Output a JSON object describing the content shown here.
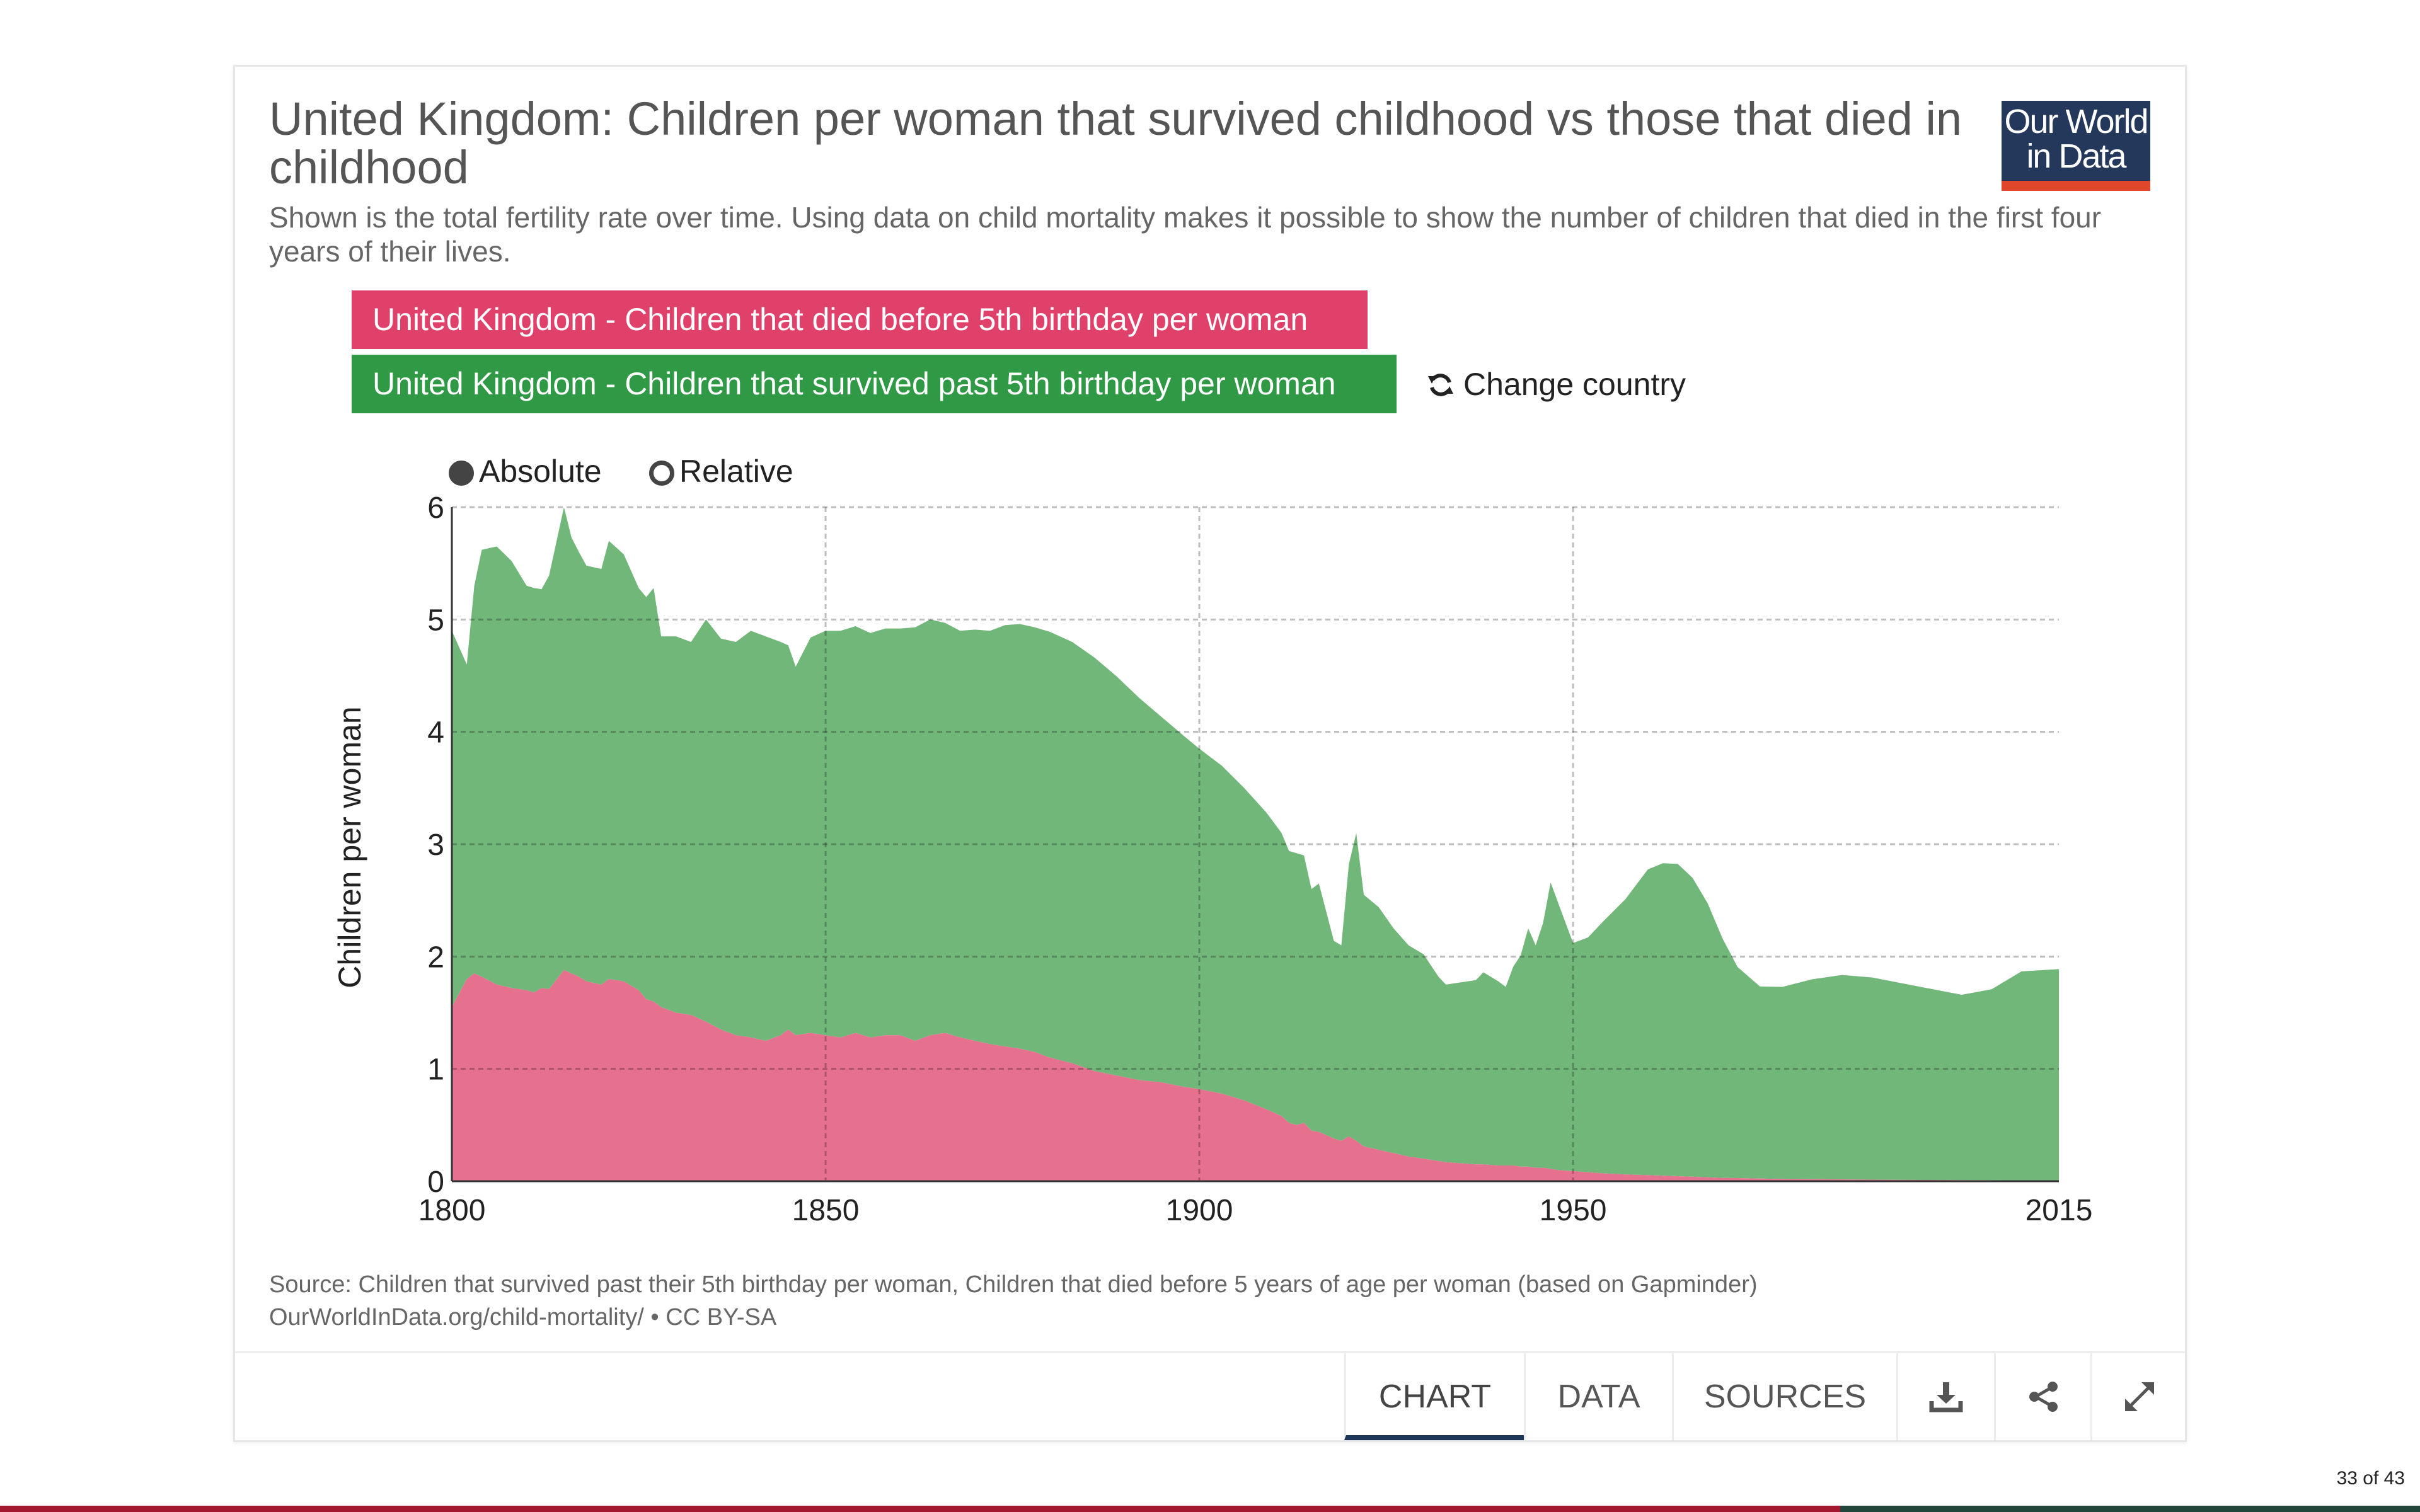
{
  "header": {
    "title": "United Kingdom: Children per woman that survived childhood vs those that died in childhood",
    "subtitle": "Shown is the total fertility rate over time. Using data on child mortality makes it possible to show the number of children that died in the first four years of their lives.",
    "logo_line1": "Our World",
    "logo_line2": "in Data"
  },
  "legend": {
    "died_label": "United Kingdom - Children that died before 5th birthday per woman",
    "survived_label": "United Kingdom - Children that survived past 5th birthday per woman",
    "change_country": "Change country"
  },
  "mode": {
    "absolute": "Absolute",
    "relative": "Relative",
    "selected": "absolute"
  },
  "colors": {
    "died": "#e6718f",
    "survived": "#72b77a",
    "died_chip": "#e0416a",
    "survived_chip": "#2f9945"
  },
  "chart_data": {
    "type": "area",
    "stacked": true,
    "ylabel": "Children per woman",
    "xlabel": "",
    "xlim": [
      1800,
      2015
    ],
    "ylim": [
      0,
      6
    ],
    "x_ticks": [
      1800,
      1850,
      1900,
      1950,
      2015
    ],
    "y_ticks": [
      0,
      1,
      2,
      3,
      4,
      5,
      6
    ],
    "grid": true,
    "x": [
      1800,
      1802,
      1803,
      1804,
      1806,
      1808,
      1810,
      1811,
      1812,
      1813,
      1815,
      1816,
      1817,
      1818,
      1820,
      1821,
      1823,
      1825,
      1826,
      1827,
      1828,
      1830,
      1832,
      1834,
      1836,
      1838,
      1840,
      1842,
      1844,
      1845,
      1846,
      1848,
      1850,
      1852,
      1854,
      1856,
      1858,
      1860,
      1862,
      1864,
      1866,
      1868,
      1870,
      1872,
      1874,
      1876,
      1878,
      1880,
      1883,
      1886,
      1889,
      1892,
      1895,
      1898,
      1900,
      1903,
      1906,
      1909,
      1911,
      1912,
      1913,
      1914,
      1915,
      1916,
      1918,
      1919,
      1920,
      1921,
      1922,
      1924,
      1926,
      1928,
      1930,
      1932,
      1933,
      1935,
      1937,
      1938,
      1940,
      1941,
      1942,
      1943,
      1944,
      1945,
      1946,
      1947,
      1948,
      1950,
      1952,
      1954,
      1957,
      1960,
      1962,
      1964,
      1966,
      1968,
      1970,
      1972,
      1975,
      1978,
      1982,
      1986,
      1990,
      1994,
      1998,
      2002,
      2006,
      2010,
      2015
    ],
    "series": [
      {
        "name": "United Kingdom - Children that died before 5th birthday per woman",
        "values": [
          1.55,
          1.8,
          1.85,
          1.82,
          1.75,
          1.72,
          1.7,
          1.68,
          1.72,
          1.71,
          1.88,
          1.85,
          1.82,
          1.78,
          1.75,
          1.8,
          1.78,
          1.7,
          1.62,
          1.6,
          1.55,
          1.5,
          1.48,
          1.42,
          1.35,
          1.3,
          1.28,
          1.25,
          1.3,
          1.35,
          1.3,
          1.32,
          1.3,
          1.28,
          1.32,
          1.28,
          1.3,
          1.3,
          1.25,
          1.3,
          1.32,
          1.28,
          1.25,
          1.22,
          1.2,
          1.18,
          1.15,
          1.1,
          1.05,
          0.98,
          0.94,
          0.9,
          0.88,
          0.84,
          0.82,
          0.78,
          0.72,
          0.64,
          0.58,
          0.52,
          0.5,
          0.52,
          0.45,
          0.44,
          0.38,
          0.36,
          0.4,
          0.36,
          0.31,
          0.28,
          0.25,
          0.22,
          0.2,
          0.18,
          0.17,
          0.16,
          0.15,
          0.15,
          0.14,
          0.14,
          0.14,
          0.13,
          0.13,
          0.12,
          0.12,
          0.11,
          0.1,
          0.09,
          0.08,
          0.07,
          0.06,
          0.055,
          0.05,
          0.045,
          0.04,
          0.035,
          0.03,
          0.028,
          0.024,
          0.02,
          0.018,
          0.016,
          0.014,
          0.012,
          0.011,
          0.01,
          0.009,
          0.008,
          0.008
        ]
      },
      {
        "name": "United Kingdom - Children that survived past 5th birthday per woman",
        "values": [
          3.35,
          2.8,
          3.45,
          3.8,
          3.9,
          3.8,
          3.6,
          3.6,
          3.55,
          3.68,
          4.12,
          3.88,
          3.78,
          3.7,
          3.7,
          3.9,
          3.8,
          3.58,
          3.58,
          3.68,
          3.3,
          3.35,
          3.32,
          3.58,
          3.48,
          3.5,
          3.62,
          3.6,
          3.5,
          3.42,
          3.28,
          3.52,
          3.6,
          3.62,
          3.62,
          3.6,
          3.62,
          3.62,
          3.68,
          3.7,
          3.65,
          3.62,
          3.66,
          3.68,
          3.75,
          3.78,
          3.78,
          3.79,
          3.75,
          3.68,
          3.55,
          3.4,
          3.25,
          3.12,
          3.03,
          2.92,
          2.78,
          2.64,
          2.52,
          2.42,
          2.42,
          2.38,
          2.15,
          2.21,
          1.76,
          1.74,
          2.42,
          2.74,
          2.24,
          2.16,
          2.0,
          1.88,
          1.82,
          1.64,
          1.58,
          1.61,
          1.64,
          1.71,
          1.64,
          1.59,
          1.77,
          1.88,
          2.12,
          1.98,
          2.18,
          2.55,
          2.38,
          2.03,
          2.09,
          2.24,
          2.45,
          2.72,
          2.78,
          2.78,
          2.66,
          2.44,
          2.13,
          1.88,
          1.71,
          1.71,
          1.78,
          1.82,
          1.8,
          1.75,
          1.7,
          1.65,
          1.7,
          1.86,
          1.88
        ]
      }
    ]
  },
  "source": {
    "line1": "Source: Children that survived past their 5th birthday per woman, Children that died before 5 years of age per woman (based on Gapminder)",
    "line2": "OurWorldInData.org/child-mortality/ • CC BY-SA"
  },
  "tabs": {
    "chart": "CHART",
    "data": "DATA",
    "sources": "SOURCES",
    "icons": [
      "download-icon",
      "share-icon",
      "expand-icon"
    ]
  },
  "pagination": "33 of 43"
}
